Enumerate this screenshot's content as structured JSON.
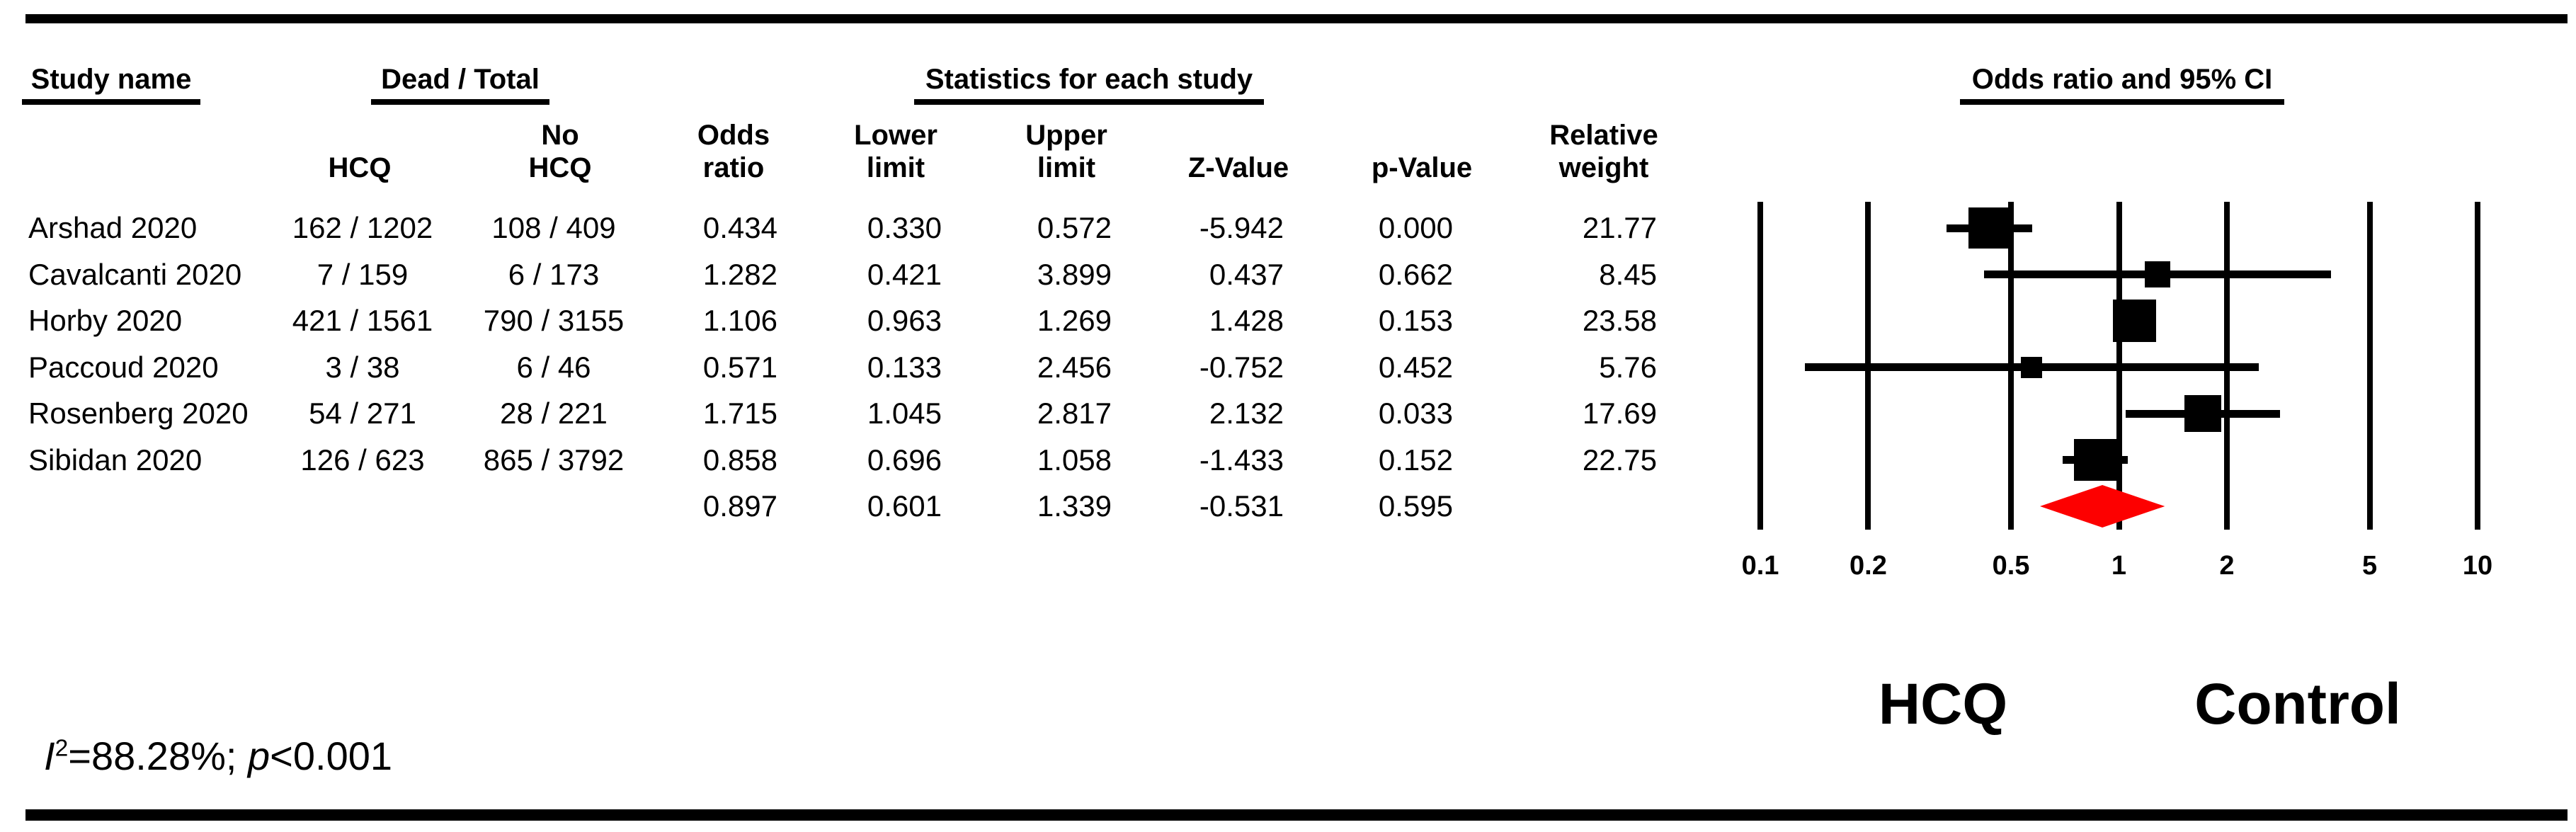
{
  "figure": {
    "group_headers": {
      "study": "Study name",
      "dead_total": "Dead / Total",
      "stats": "Statistics for each study"
    },
    "sub_headers": {
      "hcq": [
        "HCQ"
      ],
      "no_hcq": [
        "No",
        "HCQ"
      ],
      "odds_ratio": [
        "Odds",
        "ratio"
      ],
      "lower": [
        "Lower",
        "limit"
      ],
      "upper": [
        "Upper",
        "limit"
      ],
      "z": [
        "Z-Value"
      ],
      "p": [
        "p-Value"
      ],
      "weight": [
        "Relative",
        "weight"
      ]
    },
    "heterogeneity": {
      "i_label": "I",
      "i_sup": "2",
      "i_rest": "=88.28%; ",
      "p_label": "p",
      "p_rest": "<0.001"
    }
  },
  "chart_data": {
    "type": "forest",
    "title": "Odds ratio and 95% CI",
    "x_scale": "log10",
    "x_range": [
      0.1,
      10
    ],
    "x_ticks": [
      "0.1",
      "0.2",
      "0.5",
      "1",
      "2",
      "5",
      "10"
    ],
    "favors_left": "HCQ",
    "favors_right": "Control",
    "grid": true,
    "studies": [
      {
        "name": "Arshad 2020",
        "dead_total_hcq": "162 / 1202",
        "dead_total_no_hcq": "108 / 409",
        "odds_ratio": "0.434",
        "lower_limit": "0.330",
        "upper_limit": "0.572",
        "z_value": "-5.942",
        "p_value": "0.000",
        "relative_weight": "21.77"
      },
      {
        "name": "Cavalcanti 2020",
        "dead_total_hcq": "7 / 159",
        "dead_total_no_hcq": "6 / 173",
        "odds_ratio": "1.282",
        "lower_limit": "0.421",
        "upper_limit": "3.899",
        "z_value": "0.437",
        "p_value": "0.662",
        "relative_weight": "8.45"
      },
      {
        "name": "Horby 2020",
        "dead_total_hcq": "421 / 1561",
        "dead_total_no_hcq": "790 / 3155",
        "odds_ratio": "1.106",
        "lower_limit": "0.963",
        "upper_limit": "1.269",
        "z_value": "1.428",
        "p_value": "0.153",
        "relative_weight": "23.58"
      },
      {
        "name": "Paccoud 2020",
        "dead_total_hcq": "3 / 38",
        "dead_total_no_hcq": "6 / 46",
        "odds_ratio": "0.571",
        "lower_limit": "0.133",
        "upper_limit": "2.456",
        "z_value": "-0.752",
        "p_value": "0.452",
        "relative_weight": "5.76"
      },
      {
        "name": "Rosenberg 2020",
        "dead_total_hcq": "54 / 271",
        "dead_total_no_hcq": "28 / 221",
        "odds_ratio": "1.715",
        "lower_limit": "1.045",
        "upper_limit": "2.817",
        "z_value": "2.132",
        "p_value": "0.033",
        "relative_weight": "17.69"
      },
      {
        "name": "Sibidan 2020",
        "dead_total_hcq": "126 / 623",
        "dead_total_no_hcq": "865 / 3792",
        "odds_ratio": "0.858",
        "lower_limit": "0.696",
        "upper_limit": "1.058",
        "z_value": "-1.433",
        "p_value": "0.152",
        "relative_weight": "22.75"
      }
    ],
    "summary": {
      "odds_ratio": "0.897",
      "lower_limit": "0.601",
      "upper_limit": "1.339",
      "z_value": "-0.531",
      "p_value": "0.595"
    },
    "heterogeneity_text": "I2=88.28%; p<0.001",
    "colors": {
      "marker": "#000000",
      "summary_diamond": "#fd0000"
    }
  }
}
